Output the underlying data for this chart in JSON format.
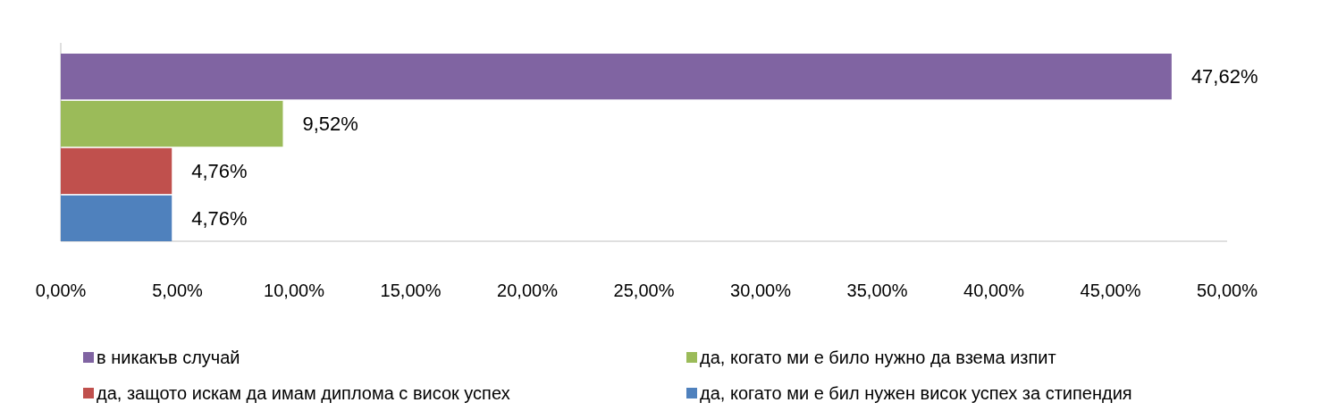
{
  "chart_data": {
    "type": "bar",
    "orientation": "horizontal",
    "categories": [
      null
    ],
    "series": [
      {
        "name": "в никакъв случай",
        "color": "#8064a2",
        "values": [
          47.62
        ],
        "value_labels": [
          "47,62%"
        ]
      },
      {
        "name": "да, когато ми е било нужно да взема изпит",
        "color": "#9bbb59",
        "values": [
          9.52
        ],
        "value_labels": [
          "9,52%"
        ]
      },
      {
        "name": "да, защото искам да имам диплома с висок успех",
        "color": "#c0504d",
        "values": [
          4.76
        ],
        "value_labels": [
          "4,76%"
        ]
      },
      {
        "name": "да, когато ми е бил нужен висок успех за стипендия",
        "color": "#4f81bd",
        "values": [
          4.76
        ],
        "value_labels": [
          "4,76%"
        ]
      }
    ],
    "xlim": [
      0,
      50
    ],
    "xticks": [
      {
        "value": 0,
        "label": "0,00%"
      },
      {
        "value": 5,
        "label": "5,00%"
      },
      {
        "value": 10,
        "label": "10,00%"
      },
      {
        "value": 15,
        "label": "15,00%"
      },
      {
        "value": 20,
        "label": "20,00%"
      },
      {
        "value": 25,
        "label": "25,00%"
      },
      {
        "value": 30,
        "label": "30,00%"
      },
      {
        "value": 35,
        "label": "35,00%"
      },
      {
        "value": 40,
        "label": "40,00%"
      },
      {
        "value": 45,
        "label": "45,00%"
      },
      {
        "value": 50,
        "label": "50,00%"
      }
    ],
    "legend": "bottom"
  }
}
